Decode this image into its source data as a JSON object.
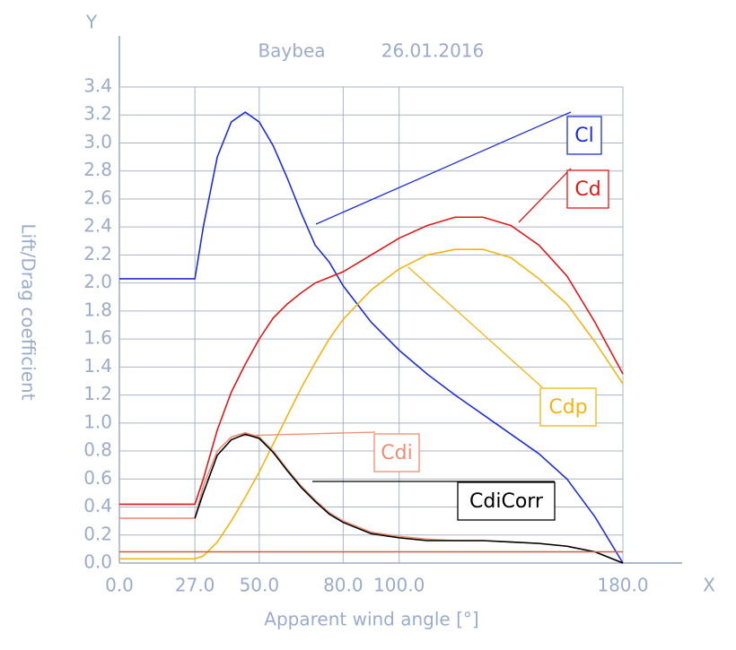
{
  "chart_data": {
    "type": "line",
    "title": "Baybea",
    "date": "26.01.2016",
    "x_axis_name": "X",
    "y_axis_name": "Y",
    "xlabel": "Apparent wind angle [°]",
    "ylabel": "Lift/Drag coefficient",
    "x": [
      0,
      27,
      30,
      35,
      40,
      45,
      50,
      55,
      60,
      65,
      70,
      75,
      80,
      90,
      100,
      110,
      120,
      130,
      140,
      150,
      160,
      170,
      180
    ],
    "series": [
      {
        "name": "Cl",
        "color": "#1f2fd8",
        "values": [
          2.03,
          2.03,
          2.4,
          2.9,
          3.15,
          3.22,
          3.15,
          2.98,
          2.75,
          2.5,
          2.27,
          2.15,
          1.98,
          1.72,
          1.52,
          1.35,
          1.2,
          1.06,
          0.92,
          0.78,
          0.6,
          0.33,
          0.0
        ]
      },
      {
        "name": "Cd",
        "color": "#e01818",
        "values": [
          0.42,
          0.42,
          0.6,
          0.95,
          1.22,
          1.42,
          1.6,
          1.75,
          1.85,
          1.93,
          2.0,
          2.04,
          2.08,
          2.2,
          2.32,
          2.41,
          2.47,
          2.47,
          2.41,
          2.27,
          2.05,
          1.72,
          1.35
        ]
      },
      {
        "name": "Cdp",
        "color": "#f2b50f",
        "values": [
          0.03,
          0.03,
          0.05,
          0.15,
          0.3,
          0.47,
          0.65,
          0.85,
          1.05,
          1.25,
          1.43,
          1.6,
          1.74,
          1.95,
          2.1,
          2.2,
          2.24,
          2.24,
          2.18,
          2.03,
          1.85,
          1.58,
          1.28
        ]
      },
      {
        "name": "Cdi",
        "color": "#f08c72",
        "values": [
          0.32,
          0.32,
          0.55,
          0.8,
          0.9,
          0.93,
          0.9,
          0.8,
          0.67,
          0.55,
          0.45,
          0.36,
          0.3,
          0.22,
          0.19,
          0.17,
          0.16,
          0.16,
          0.15,
          0.14,
          0.12,
          0.08,
          0.0
        ]
      },
      {
        "name": "CdiCorr",
        "color": "#000000",
        "values": [
          null,
          0.32,
          0.5,
          0.77,
          0.88,
          0.92,
          0.89,
          0.79,
          0.66,
          0.54,
          0.44,
          0.35,
          0.29,
          0.21,
          0.18,
          0.16,
          0.16,
          0.16,
          0.15,
          0.14,
          0.12,
          0.08,
          0.0
        ]
      },
      {
        "color": "#d0603a",
        "values": [
          0.08,
          0.08,
          0.08,
          0.08,
          0.08,
          0.08,
          0.08,
          0.08,
          0.08,
          0.08,
          0.08,
          0.08,
          0.08,
          0.08,
          0.08,
          0.08,
          0.08,
          0.08,
          0.08,
          0.08,
          0.08,
          0.08,
          0.08
        ]
      }
    ],
    "xlim": [
      0,
      180
    ],
    "xticks": [
      {
        "value": 0,
        "label": "0.0"
      },
      {
        "value": 27,
        "label": "27.0"
      },
      {
        "value": 50,
        "label": "50.0"
      },
      {
        "value": 80,
        "label": "80.0"
      },
      {
        "value": 100,
        "label": "100.0"
      },
      {
        "value": 180,
        "label": "180.0"
      }
    ],
    "ylim": [
      0,
      3.4
    ],
    "yticks": [
      {
        "value": 0,
        "label": "0.0"
      },
      {
        "value": 0.2,
        "label": "0.2"
      },
      {
        "value": 0.4,
        "label": "0.4"
      },
      {
        "value": 0.6,
        "label": "0.6"
      },
      {
        "value": 0.8,
        "label": "0.8"
      },
      {
        "value": 1.0,
        "label": "1.0"
      },
      {
        "value": 1.2,
        "label": "1.2"
      },
      {
        "value": 1.4,
        "label": "1.4"
      },
      {
        "value": 1.6,
        "label": "1.6"
      },
      {
        "value": 1.8,
        "label": "1.8"
      },
      {
        "value": 2.0,
        "label": "2.0"
      },
      {
        "value": 2.2,
        "label": "2.2"
      },
      {
        "value": 2.4,
        "label": "2.4"
      },
      {
        "value": 2.6,
        "label": "2.6"
      },
      {
        "value": 2.8,
        "label": "2.8"
      },
      {
        "value": 3.0,
        "label": "3.0"
      },
      {
        "value": 3.2,
        "label": "3.2"
      },
      {
        "value": 3.4,
        "label": "3.4"
      }
    ],
    "grid": true
  }
}
